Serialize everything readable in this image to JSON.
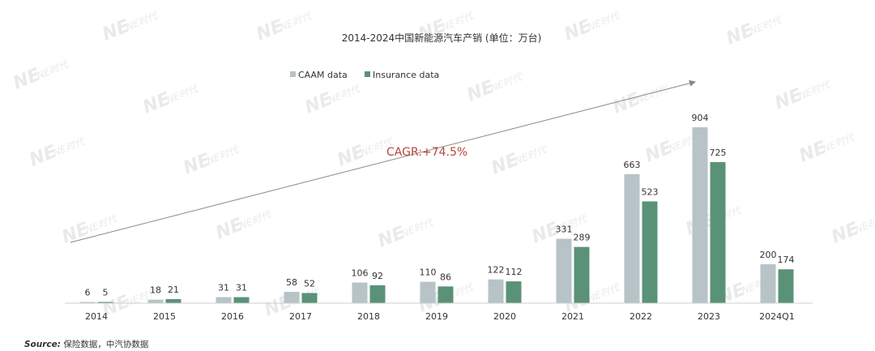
{
  "chart_data": {
    "type": "bar",
    "title": "2014-2024中国新能源汽车产销 (单位：万台)",
    "categories": [
      "2014",
      "2015",
      "2016",
      "2017",
      "2018",
      "2019",
      "2020",
      "2021",
      "2022",
      "2023",
      "2024Q1"
    ],
    "series": [
      {
        "name": "CAAM data",
        "color": "#b7c3c7",
        "values": [
          6,
          18,
          31,
          58,
          106,
          110,
          122,
          331,
          663,
          904,
          200
        ]
      },
      {
        "name": "Insurance data",
        "color": "#5a9278",
        "values": [
          5,
          21,
          31,
          52,
          92,
          86,
          112,
          289,
          523,
          725,
          174
        ]
      }
    ],
    "ylim": [
      0,
      904
    ],
    "grid": false,
    "legend_position": "top-center",
    "annotation": {
      "text": "CAGR:+74.5%",
      "color": "#b5473a"
    },
    "arrow_color": "#888888",
    "watermark_text": "NE时代"
  },
  "source": {
    "label": "Source:",
    "text": "保险数据，中汽协数据"
  }
}
